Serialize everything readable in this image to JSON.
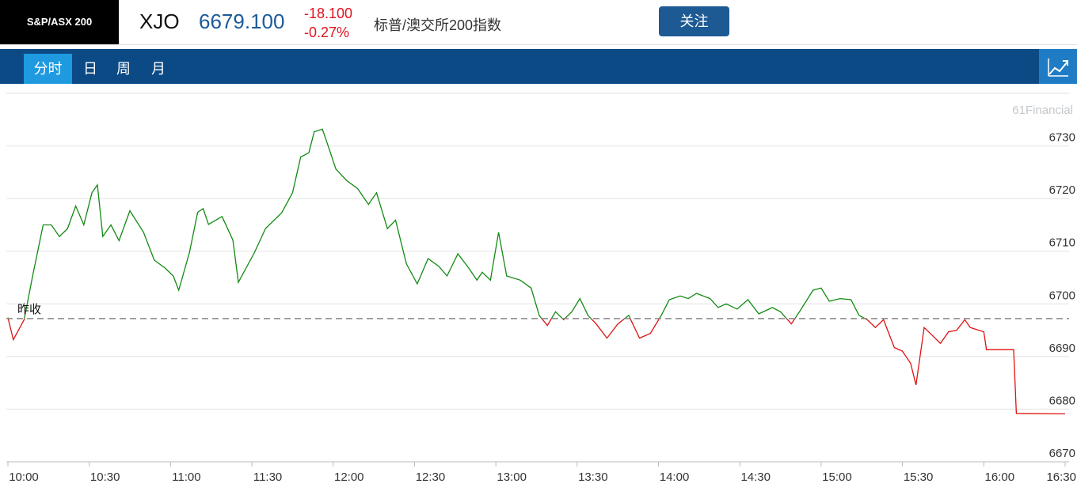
{
  "header": {
    "badge": "S&P/ASX 200",
    "symbol": "XJO",
    "price": "6679.100",
    "change": "-18.100",
    "change_pct": "-0.27%",
    "name": "标普/澳交所200指数",
    "button": "关注"
  },
  "tabs": [
    "分时",
    "日",
    "周",
    "月"
  ],
  "chart_data": {
    "type": "line",
    "watermark": "61Financial",
    "x": [
      600,
      602,
      606,
      609,
      613,
      616,
      619,
      622,
      625,
      628,
      631,
      633,
      635,
      638,
      641,
      645,
      650,
      654,
      658,
      661,
      663,
      667,
      670,
      672,
      674,
      679,
      683,
      685,
      691,
      695,
      701,
      705,
      708,
      711,
      713,
      716,
      718,
      721,
      725,
      729,
      733,
      736,
      740,
      743,
      747,
      751,
      755,
      759,
      762,
      766,
      770,
      773,
      775,
      778,
      781,
      784,
      789,
      793,
      796,
      799,
      802,
      805,
      808,
      811,
      814,
      817,
      821,
      825,
      829,
      833,
      837,
      841,
      844,
      848,
      851,
      854,
      859,
      862,
      865,
      869,
      873,
      877,
      882,
      885,
      889,
      892,
      897,
      900,
      903,
      907,
      911,
      914,
      917,
      920,
      923,
      927,
      930,
      933,
      935,
      938,
      941,
      944,
      947,
      950,
      953,
      955,
      960,
      961,
      971,
      972,
      990
    ],
    "values": [
      6697.4,
      6693.2,
      6697,
      6705,
      6715,
      6715,
      6712.8,
      6714.3,
      6718.6,
      6715,
      6721.1,
      6722.6,
      6712.8,
      6715,
      6712,
      6717.7,
      6713.6,
      6708.3,
      6706.8,
      6705.3,
      6702.6,
      6709.8,
      6717.4,
      6718.1,
      6715.1,
      6716.6,
      6712.1,
      6704.1,
      6709.8,
      6714.3,
      6717.3,
      6721.1,
      6727.9,
      6728.7,
      6732.7,
      6733.2,
      6730.2,
      6725.6,
      6723.4,
      6721.9,
      6718.9,
      6721.1,
      6714.3,
      6715.9,
      6707.6,
      6703.8,
      6708.6,
      6707.1,
      6705.3,
      6709.5,
      6706.8,
      6704.5,
      6706,
      6704.5,
      6713.6,
      6705.3,
      6704.5,
      6703,
      6697.8,
      6695.9,
      6698.5,
      6697,
      6698.5,
      6701,
      6697.8,
      6696.2,
      6693.5,
      6696.2,
      6697.8,
      6693.5,
      6694.4,
      6697.8,
      6700.8,
      6701.5,
      6701,
      6702,
      6701,
      6699.3,
      6700,
      6699,
      6700.8,
      6698.1,
      6699.3,
      6698.5,
      6696.2,
      6698.5,
      6702.6,
      6703,
      6700.5,
      6701,
      6700.8,
      6697.8,
      6697,
      6695.5,
      6697,
      6691.7,
      6691,
      6688.7,
      6684.6,
      6695.5,
      6694,
      6692.5,
      6694.7,
      6695,
      6697,
      6695.5,
      6694.7,
      6691.3,
      6691.3,
      6679.2,
      6679.1
    ],
    "colors": {
      "up": "#128a12",
      "down": "#dd1111"
    },
    "reference": {
      "value": 6697.2,
      "label": "昨收"
    },
    "xlim": [
      600,
      990
    ],
    "xticks": [
      {
        "value": 600,
        "label": "10:00"
      },
      {
        "value": 630,
        "label": "10:30"
      },
      {
        "value": 660,
        "label": "11:00"
      },
      {
        "value": 690,
        "label": "11:30"
      },
      {
        "value": 720,
        "label": "12:00"
      },
      {
        "value": 750,
        "label": "12:30"
      },
      {
        "value": 780,
        "label": "13:00"
      },
      {
        "value": 810,
        "label": "13:30"
      },
      {
        "value": 840,
        "label": "14:00"
      },
      {
        "value": 870,
        "label": "14:30"
      },
      {
        "value": 900,
        "label": "15:00"
      },
      {
        "value": 930,
        "label": "15:30"
      },
      {
        "value": 960,
        "label": "16:00"
      },
      {
        "value": 990,
        "label": "16:30"
      }
    ],
    "ylim": [
      6670,
      6740
    ],
    "yticks": [
      6670,
      6680,
      6690,
      6700,
      6710,
      6720,
      6730
    ],
    "grid": true
  }
}
